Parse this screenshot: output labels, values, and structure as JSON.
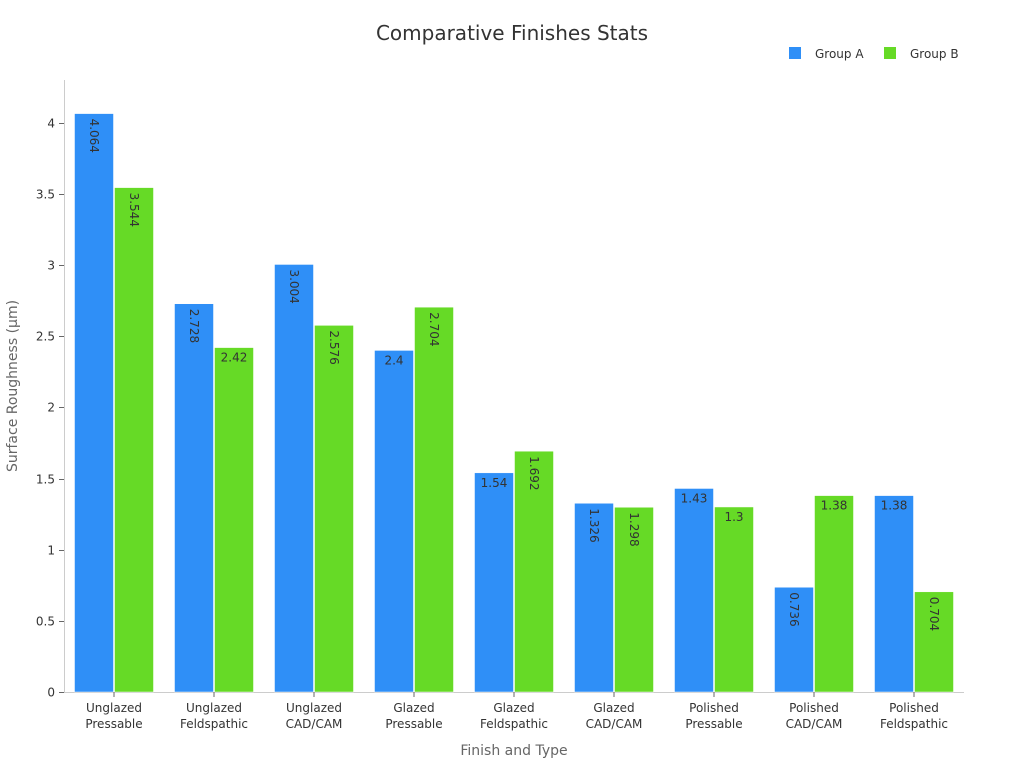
{
  "chart_data": {
    "type": "bar",
    "title": "Comparative Finishes Stats",
    "xlabel": "Finish and Type",
    "ylabel": "Surface Roughness (µm)",
    "ylim": [
      0,
      4.3
    ],
    "yticks": [
      0,
      0.5,
      1,
      1.5,
      2,
      2.5,
      3,
      3.5,
      4
    ],
    "ytick_labels": [
      "0",
      "0.5",
      "1",
      "1.5",
      "2",
      "2.5",
      "3",
      "3.5",
      "4"
    ],
    "categories": [
      [
        "Unglazed",
        "Pressable"
      ],
      [
        "Unglazed",
        "Feldspathic"
      ],
      [
        "Unglazed",
        "CAD/CAM"
      ],
      [
        "Glazed",
        "Pressable"
      ],
      [
        "Glazed",
        "Feldspathic"
      ],
      [
        "Glazed",
        "CAD/CAM"
      ],
      [
        "Polished",
        "Pressable"
      ],
      [
        "Polished",
        "CAD/CAM"
      ],
      [
        "Polished",
        "Feldspathic"
      ]
    ],
    "series": [
      {
        "name": "Group A",
        "color": "#2f8ff7",
        "values": [
          4.064,
          2.728,
          3.004,
          2.4,
          1.54,
          1.326,
          1.43,
          0.736,
          1.38
        ],
        "labels": [
          "4.064",
          "2.728",
          "3.004",
          "2.4",
          "1.54",
          "1.326",
          "1.43",
          "0.736",
          "1.38"
        ]
      },
      {
        "name": "Group B",
        "color": "#66da26",
        "values": [
          3.544,
          2.42,
          2.576,
          2.704,
          1.692,
          1.298,
          1.3,
          1.38,
          0.704
        ],
        "labels": [
          "3.544",
          "2.42",
          "2.576",
          "2.704",
          "1.692",
          "1.298",
          "1.3",
          "1.38",
          "0.704"
        ]
      }
    ],
    "grid": false,
    "legend_position": "top-right"
  }
}
